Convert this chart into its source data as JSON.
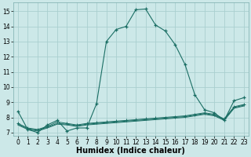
{
  "xlabel": "Humidex (Indice chaleur)",
  "xlim": [
    -0.5,
    23.5
  ],
  "ylim": [
    6.8,
    15.6
  ],
  "bg_color": "#cce8e8",
  "line_color": "#1a6e64",
  "grid_color": "#aacfcf",
  "line1_x": [
    0,
    1,
    2,
    3,
    4,
    5,
    6,
    7,
    8,
    9,
    10,
    11,
    12,
    13,
    14,
    15,
    16,
    17,
    18,
    19,
    20,
    21,
    22,
    23
  ],
  "line1_y": [
    8.4,
    7.2,
    7.0,
    7.5,
    7.8,
    7.1,
    7.3,
    7.3,
    8.9,
    13.0,
    13.8,
    14.0,
    15.1,
    15.15,
    14.1,
    13.7,
    12.8,
    11.5,
    9.5,
    8.5,
    8.3,
    7.8,
    9.1,
    9.3
  ],
  "line2_x": [
    0,
    1,
    2,
    3,
    4,
    5,
    6,
    7,
    8,
    9,
    10,
    11,
    12,
    13,
    14,
    15,
    16,
    17,
    18,
    19,
    20,
    21,
    22,
    23
  ],
  "line2_y": [
    7.6,
    7.3,
    7.2,
    7.4,
    7.7,
    7.6,
    7.5,
    7.6,
    7.65,
    7.7,
    7.75,
    7.8,
    7.85,
    7.9,
    7.95,
    8.0,
    8.05,
    8.1,
    8.2,
    8.3,
    8.2,
    7.9,
    8.7,
    8.85
  ],
  "line3_x": [
    0,
    1,
    2,
    3,
    4,
    5,
    6,
    7,
    8,
    9,
    10,
    11,
    12,
    13,
    14,
    15,
    16,
    17,
    18,
    19,
    20,
    21,
    22,
    23
  ],
  "line3_y": [
    7.55,
    7.25,
    7.15,
    7.35,
    7.6,
    7.55,
    7.45,
    7.55,
    7.6,
    7.65,
    7.7,
    7.75,
    7.8,
    7.85,
    7.9,
    7.95,
    8.0,
    8.05,
    8.15,
    8.25,
    8.15,
    7.85,
    8.65,
    8.8
  ],
  "line4_x": [
    0,
    1,
    2,
    3,
    4,
    5,
    6,
    7,
    8,
    9,
    10,
    11,
    12,
    13,
    14,
    15,
    16,
    17,
    18,
    19,
    20,
    21,
    22,
    23
  ],
  "line4_y": [
    7.5,
    7.2,
    7.1,
    7.3,
    7.55,
    7.5,
    7.4,
    7.5,
    7.55,
    7.6,
    7.65,
    7.7,
    7.75,
    7.8,
    7.85,
    7.9,
    7.95,
    8.0,
    8.1,
    8.2,
    8.1,
    7.8,
    8.6,
    8.75
  ],
  "xticks": [
    0,
    1,
    2,
    3,
    4,
    5,
    6,
    7,
    8,
    9,
    10,
    11,
    12,
    13,
    14,
    15,
    16,
    17,
    18,
    19,
    20,
    21,
    22,
    23
  ],
  "yticks": [
    7,
    8,
    9,
    10,
    11,
    12,
    13,
    14,
    15
  ],
  "tick_fontsize": 5.5,
  "label_fontsize": 7.0
}
